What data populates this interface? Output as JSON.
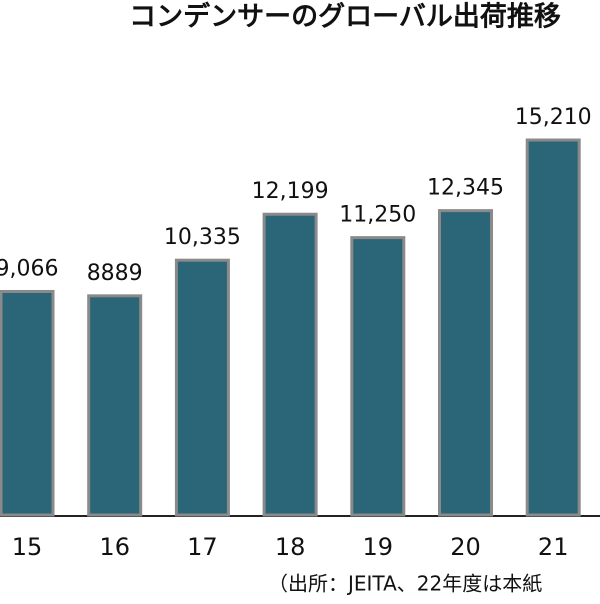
{
  "chart_data": {
    "type": "bar",
    "title": "コンデンサーのグローバル出荷推移",
    "categories": [
      "15",
      "16",
      "17",
      "18",
      "19",
      "20",
      "21"
    ],
    "values": [
      9066,
      8889,
      10335,
      12199,
      11250,
      12345,
      15210
    ],
    "value_labels": [
      "9,066",
      "8889",
      "10,335",
      "12,199",
      "11,250",
      "12,345",
      "15,210"
    ],
    "color": "#2a6677",
    "note": "（出所：JEITA、22年度は本紙"
  }
}
